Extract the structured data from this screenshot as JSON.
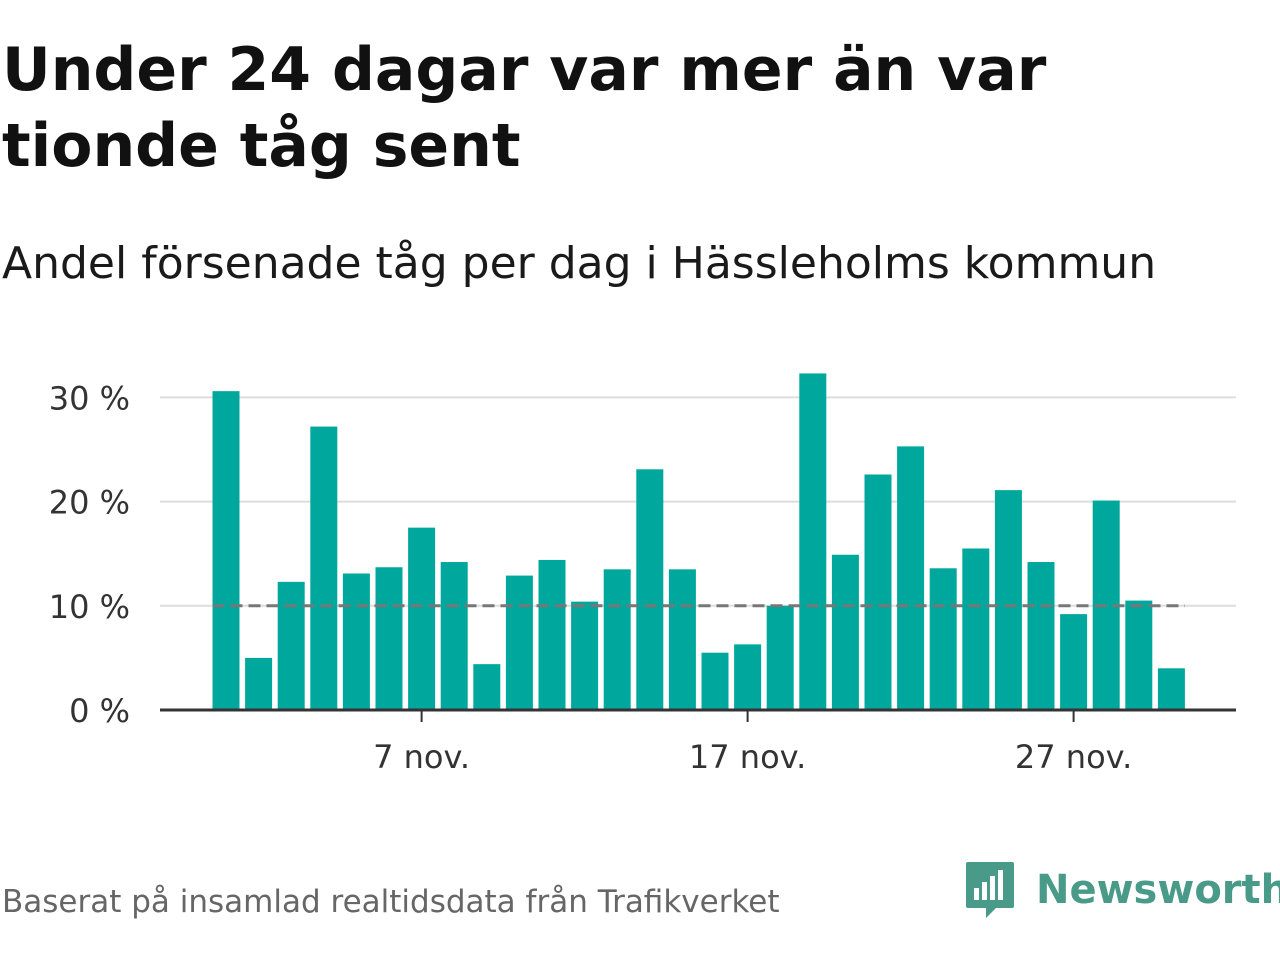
{
  "title": "Under 24 dagar var mer än var tionde tåg sent",
  "subtitle": "Andel försenade tåg per dag i Hässleholms kommun",
  "source": "Baserat på insamlad realtidsdata från Trafikverket",
  "brand": {
    "name": "Newsworthy",
    "icon": "newsworthy-logo-icon",
    "color": "#4a9a8a"
  },
  "colors": {
    "bar": "#00a79d",
    "reference_line": "#777777",
    "grid": "#dddddd",
    "axis": "#333333"
  },
  "chart_data": {
    "type": "bar",
    "x_unit": "day of November",
    "x": [
      1,
      2,
      3,
      4,
      5,
      6,
      7,
      8,
      9,
      10,
      11,
      12,
      13,
      14,
      15,
      16,
      17,
      18,
      19,
      20,
      21,
      22,
      23,
      24,
      25,
      26,
      27,
      28,
      29,
      30
    ],
    "values": [
      30.6,
      5.0,
      12.3,
      27.2,
      13.1,
      13.7,
      17.5,
      14.2,
      4.4,
      12.9,
      14.4,
      10.4,
      13.5,
      23.1,
      13.5,
      5.5,
      6.3,
      10.0,
      32.3,
      14.9,
      22.6,
      25.3,
      13.6,
      15.5,
      21.1,
      14.2,
      9.2,
      20.1,
      10.5,
      4.0
    ],
    "ylim": [
      0,
      32.5
    ],
    "y_ticks": [
      0,
      10,
      20,
      30
    ],
    "y_tick_labels": [
      "0 %",
      "10 %",
      "20 %",
      "30 %"
    ],
    "x_ticks": [
      7,
      17,
      27
    ],
    "x_tick_labels": [
      "7 nov.",
      "17 nov.",
      "27 nov."
    ],
    "reference_line": {
      "value": 10,
      "style": "dashed"
    },
    "grid": true,
    "xlabel": "",
    "ylabel": ""
  }
}
